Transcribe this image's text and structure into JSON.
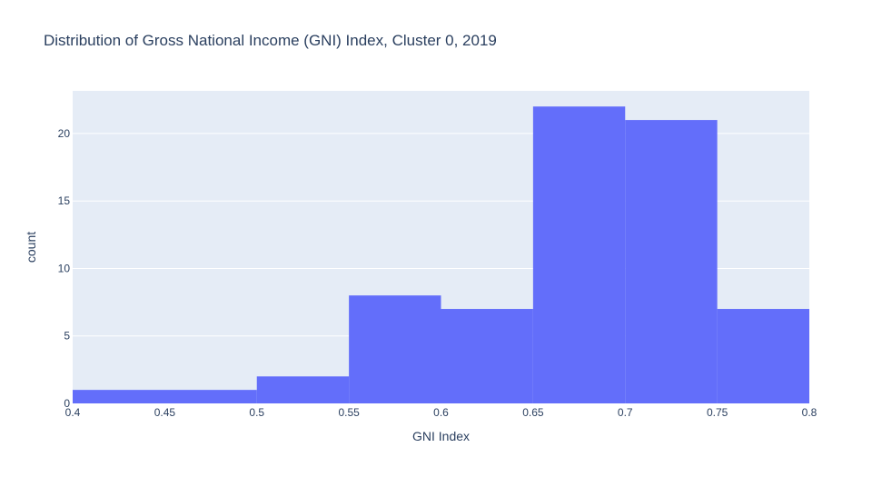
{
  "chart_data": {
    "type": "bar",
    "title": "Distribution of Gross National Income (GNI) Index, Cluster 0, 2019",
    "xlabel": "GNI Index",
    "ylabel": "count",
    "xlim": [
      0.4,
      0.8
    ],
    "ylim": [
      0,
      23.16
    ],
    "x_ticks": [
      "0.4",
      "0.45",
      "0.5",
      "0.55",
      "0.6",
      "0.65",
      "0.7",
      "0.75",
      "0.8"
    ],
    "y_ticks": [
      "0",
      "5",
      "10",
      "15",
      "20"
    ],
    "bins": [
      {
        "start": 0.4,
        "end": 0.5,
        "count": 1
      },
      {
        "start": 0.5,
        "end": 0.55,
        "count": 2
      },
      {
        "start": 0.55,
        "end": 0.6,
        "count": 8
      },
      {
        "start": 0.6,
        "end": 0.65,
        "count": 7
      },
      {
        "start": 0.65,
        "end": 0.7,
        "count": 22
      },
      {
        "start": 0.7,
        "end": 0.75,
        "count": 21
      },
      {
        "start": 0.75,
        "end": 0.8,
        "count": 7
      }
    ],
    "grid": true,
    "bar_color": "#636efa",
    "plot_background": "#e5ecf6"
  }
}
